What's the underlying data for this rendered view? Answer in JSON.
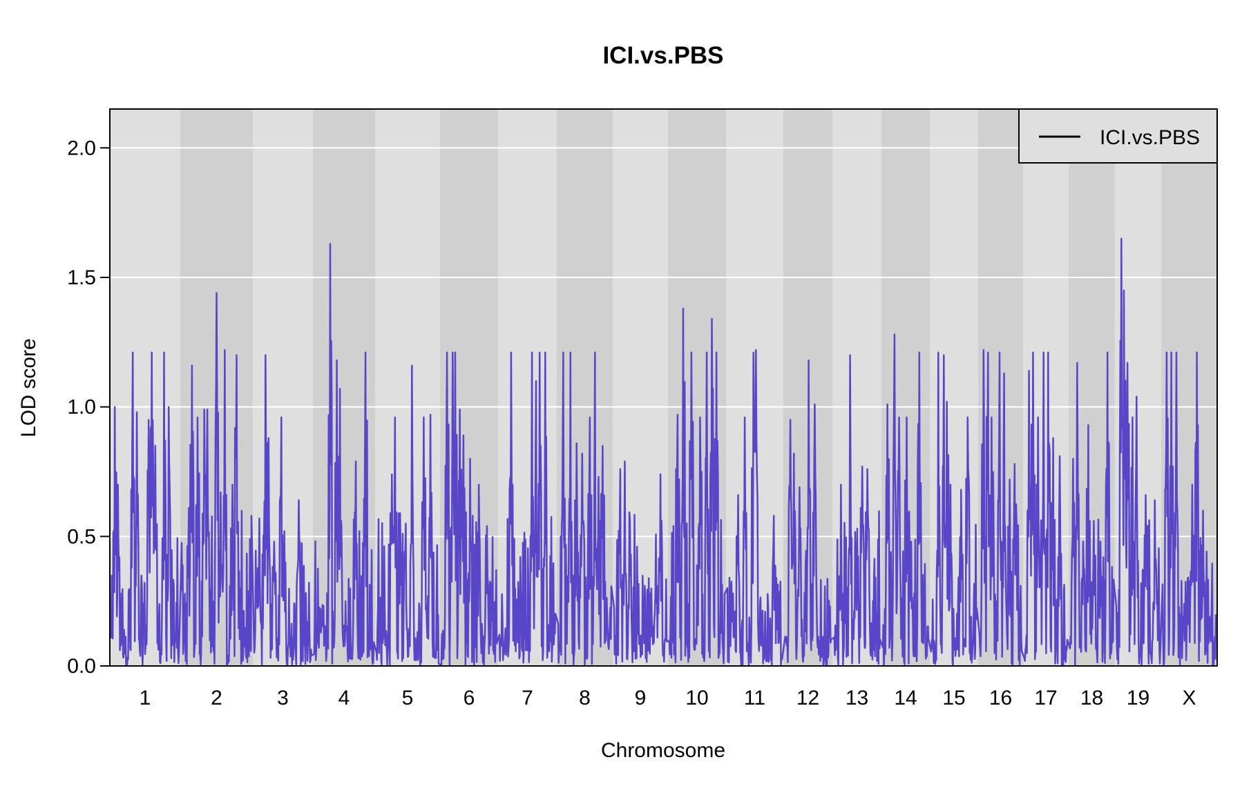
{
  "chart_data": {
    "type": "line",
    "title": "ICI.vs.PBS",
    "xlabel": "Chromosome",
    "ylabel": "LOD score",
    "ylim": [
      0,
      2.15
    ],
    "yticks": [
      "0.0",
      "0.5",
      "1.0",
      "1.5",
      "2.0"
    ],
    "grid": true,
    "legend": {
      "position": "top-right",
      "entries": [
        "ICI.vs.PBS"
      ]
    },
    "colors": {
      "series": "#5846c8",
      "band_light": "#dfdfdf",
      "band_dark": "#d0d0d0",
      "gridline": "#ffffff",
      "legend_line": "#000000"
    },
    "chromosomes": [
      {
        "label": "1",
        "peaks": [
          [
            0.5,
            1.0
          ],
          [
            1.0,
            0.7
          ],
          [
            3.2,
            1.21
          ],
          [
            3.8,
            0.98
          ],
          [
            5.5,
            0.95
          ],
          [
            6.0,
            1.21
          ],
          [
            6.5,
            0.85
          ],
          [
            7.8,
            1.21
          ],
          [
            8.5,
            1.0
          ]
        ]
      },
      {
        "label": "2",
        "peaks": [
          [
            1.0,
            0.61
          ],
          [
            1.5,
            1.16
          ],
          [
            2.3,
            0.96
          ],
          [
            3.2,
            0.99
          ],
          [
            3.7,
            0.99
          ],
          [
            5.0,
            1.44
          ],
          [
            5.6,
            0.67
          ],
          [
            6.2,
            1.22
          ],
          [
            7.3,
            0.7
          ],
          [
            7.9,
            1.2
          ]
        ]
      },
      {
        "label": "3",
        "peaks": [
          [
            0.9,
            0.57
          ],
          [
            2.0,
            1.2
          ],
          [
            2.5,
            0.88
          ],
          [
            3.5,
            0.48
          ],
          [
            4.7,
            0.96
          ],
          [
            5.3,
            0.52
          ],
          [
            7.8,
            0.64
          ]
        ]
      },
      {
        "label": "4",
        "peaks": [
          [
            1.0,
            0.22
          ],
          [
            2.7,
            1.63
          ],
          [
            3.8,
            1.18
          ],
          [
            4.3,
            1.07
          ],
          [
            5.3,
            0.25
          ],
          [
            7.0,
            0.79
          ],
          [
            8.6,
            1.21
          ]
        ]
      },
      {
        "label": "5",
        "peaks": [
          [
            1.3,
            0.18
          ],
          [
            2.5,
            0.74
          ],
          [
            3.0,
            0.96
          ],
          [
            3.8,
            0.59
          ],
          [
            4.7,
            0.55
          ],
          [
            5.7,
            1.16
          ],
          [
            7.6,
            0.96
          ],
          [
            8.7,
            0.97
          ]
        ]
      },
      {
        "label": "6",
        "peaks": [
          [
            1.0,
            1.21
          ],
          [
            2.0,
            1.21
          ],
          [
            2.5,
            1.21
          ],
          [
            3.3,
            0.99
          ],
          [
            4.0,
            0.89
          ],
          [
            5.2,
            0.8
          ],
          [
            6.8,
            0.7
          ],
          [
            8.2,
            0.54
          ]
        ]
      },
      {
        "label": "7",
        "peaks": [
          [
            1.0,
            0.12
          ],
          [
            2.1,
            1.21
          ],
          [
            3.2,
            0.19
          ],
          [
            5.8,
            1.21
          ],
          [
            6.5,
            1.1
          ],
          [
            7.2,
            1.21
          ],
          [
            8.2,
            1.21
          ]
        ]
      },
      {
        "label": "8",
        "peaks": [
          [
            1.0,
            1.21
          ],
          [
            2.3,
            1.21
          ],
          [
            3.5,
            0.86
          ],
          [
            4.5,
            0.82
          ],
          [
            6.0,
            0.96
          ],
          [
            6.9,
            1.21
          ],
          [
            7.6,
            0.73
          ],
          [
            8.4,
            0.85
          ]
        ]
      },
      {
        "label": "9",
        "peaks": [
          [
            1.2,
            0.76
          ],
          [
            2.0,
            0.79
          ],
          [
            3.0,
            0.56
          ],
          [
            5.5,
            0.12
          ],
          [
            7.5,
            0.12
          ],
          [
            8.8,
            0.74
          ]
        ]
      },
      {
        "label": "10",
        "peaks": [
          [
            1.5,
            0.97
          ],
          [
            2.5,
            1.38
          ],
          [
            4.0,
            1.21
          ],
          [
            5.6,
            0.96
          ],
          [
            6.8,
            1.21
          ],
          [
            7.7,
            1.34
          ],
          [
            8.5,
            1.21
          ]
        ]
      },
      {
        "label": "11",
        "peaks": [
          [
            1.0,
            0.28
          ],
          [
            2.0,
            0.66
          ],
          [
            3.2,
            0.96
          ],
          [
            4.8,
            1.21
          ],
          [
            5.2,
            1.22
          ],
          [
            8.5,
            0.58
          ]
        ]
      },
      {
        "label": "12",
        "peaks": [
          [
            1.2,
            0.95
          ],
          [
            2.0,
            0.82
          ],
          [
            3.2,
            0.69
          ],
          [
            5.2,
            1.18
          ],
          [
            6.5,
            1.01
          ]
        ]
      },
      {
        "label": "13",
        "peaks": [
          [
            1.5,
            0.7
          ],
          [
            3.5,
            1.2
          ],
          [
            5.0,
            0.53
          ],
          [
            6.2,
            0.77
          ],
          [
            7.2,
            0.76
          ]
        ]
      },
      {
        "label": "14",
        "peaks": [
          [
            1.0,
            1.01
          ],
          [
            2.6,
            1.28
          ],
          [
            3.6,
            0.96
          ],
          [
            5.2,
            0.96
          ],
          [
            6.2,
            0.48
          ],
          [
            8.0,
            1.21
          ]
        ]
      },
      {
        "label": "15",
        "peaks": [
          [
            1.5,
            1.21
          ],
          [
            2.8,
            1.2
          ],
          [
            3.5,
            1.02
          ],
          [
            4.2,
            0.7
          ],
          [
            6.5,
            0.68
          ],
          [
            8.0,
            0.96
          ]
        ]
      },
      {
        "label": "16",
        "peaks": [
          [
            1.0,
            1.22
          ],
          [
            2.0,
            1.21
          ],
          [
            2.9,
            0.96
          ],
          [
            4.8,
            1.21
          ],
          [
            5.8,
            1.13
          ],
          [
            7.2,
            0.72
          ],
          [
            8.3,
            0.78
          ]
        ]
      },
      {
        "label": "17",
        "peaks": [
          [
            1.0,
            1.14
          ],
          [
            2.0,
            1.21
          ],
          [
            3.2,
            0.96
          ],
          [
            4.5,
            1.21
          ],
          [
            5.5,
            1.21
          ],
          [
            6.7,
            0.88
          ],
          [
            8.2,
            0.81
          ]
        ]
      },
      {
        "label": "18",
        "peaks": [
          [
            0.7,
            0.8
          ],
          [
            1.6,
            1.17
          ],
          [
            3.0,
            0.48
          ],
          [
            4.2,
            0.93
          ],
          [
            5.5,
            0.56
          ],
          [
            7.0,
            0.48
          ],
          [
            8.6,
            1.21
          ]
        ]
      },
      {
        "label": "19",
        "peaks": [
          [
            1.2,
            1.65
          ],
          [
            1.7,
            1.45
          ],
          [
            2.5,
            1.17
          ],
          [
            3.7,
            0.96
          ],
          [
            4.6,
            1.04
          ],
          [
            6.8,
            0.66
          ],
          [
            8.8,
            0.64
          ]
        ]
      },
      {
        "label": "X",
        "peaks": [
          [
            0.8,
            1.21
          ],
          [
            1.6,
            1.21
          ],
          [
            2.6,
            1.21
          ],
          [
            4.0,
            0.24
          ],
          [
            5.6,
            0.7
          ],
          [
            6.4,
            1.21
          ],
          [
            7.6,
            0.6
          ],
          [
            8.8,
            0.19
          ]
        ]
      }
    ]
  }
}
